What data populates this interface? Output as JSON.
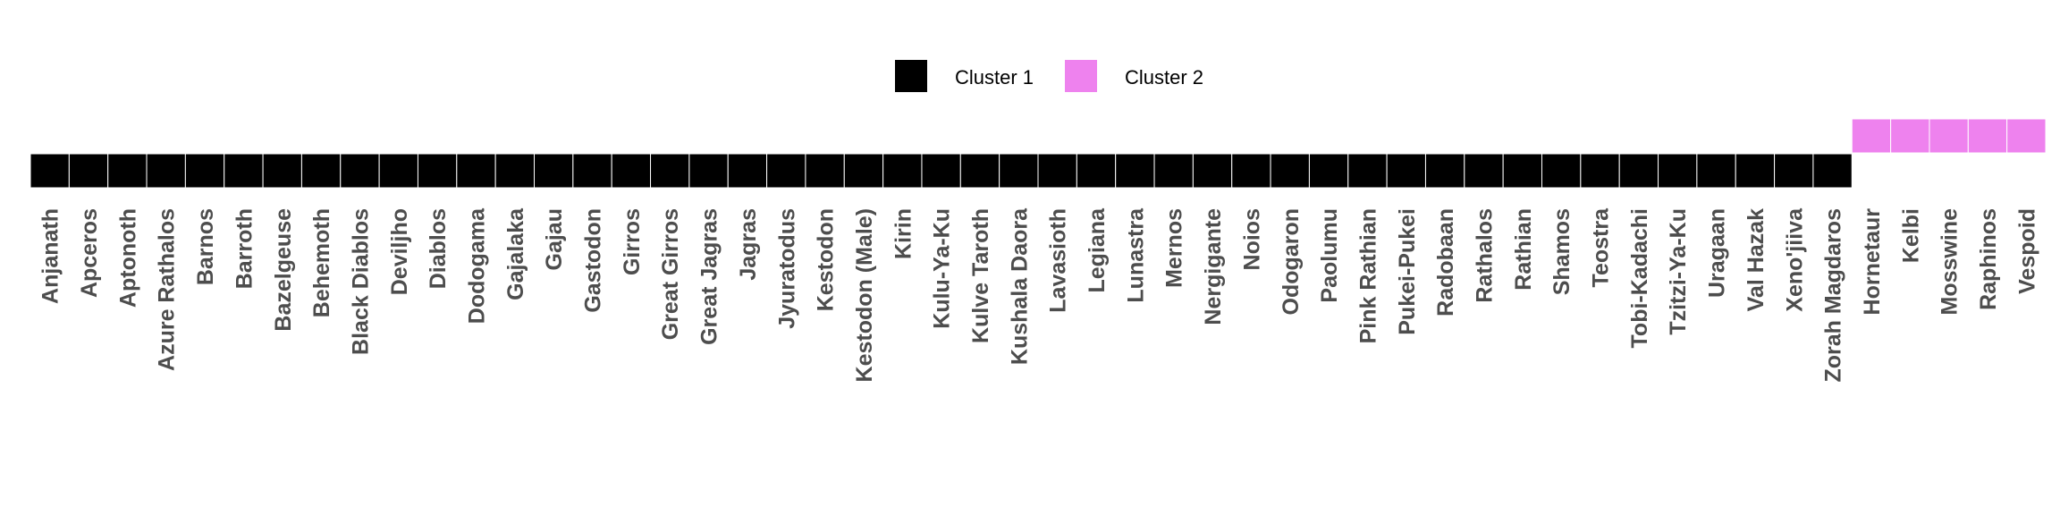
{
  "chart_data": {
    "type": "heatmap",
    "title": "",
    "xlabel": "",
    "ylabel": "",
    "legend": {
      "position": "top",
      "entries": [
        {
          "label": "Cluster 1",
          "color": "#000000"
        },
        {
          "label": "Cluster 2",
          "color": "#ee82ee"
        }
      ]
    },
    "categories": [
      "Anjanath",
      "Apceros",
      "Aptonoth",
      "Azure Rathalos",
      "Barnos",
      "Barroth",
      "Bazelgeuse",
      "Behemoth",
      "Black Diablos",
      "Deviljho",
      "Diablos",
      "Dodogama",
      "Gajalaka",
      "Gajau",
      "Gastodon",
      "Girros",
      "Great Girros",
      "Great Jagras",
      "Jagras",
      "Jyuratodus",
      "Kestodon",
      "Kestodon (Male)",
      "Kirin",
      "Kulu-Ya-Ku",
      "Kulve Taroth",
      "Kushala Daora",
      "Lavasioth",
      "Legiana",
      "Lunastra",
      "Mernos",
      "Nergigante",
      "Noios",
      "Odogaron",
      "Paolumu",
      "Pink Rathian",
      "Pukei-Pukei",
      "Radobaan",
      "Rathalos",
      "Rathian",
      "Shamos",
      "Teostra",
      "Tobi-Kadachi",
      "Tzitzi-Ya-Ku",
      "Uragaan",
      "Val Hazak",
      "Xeno'jiiva",
      "Zorah Magdaros",
      "Hornetaur",
      "Kelbi",
      "Mosswine",
      "Raphinos",
      "Vespoid"
    ],
    "values": [
      1,
      1,
      1,
      1,
      1,
      1,
      1,
      1,
      1,
      1,
      1,
      1,
      1,
      1,
      1,
      1,
      1,
      1,
      1,
      1,
      1,
      1,
      1,
      1,
      1,
      1,
      1,
      1,
      1,
      1,
      1,
      1,
      1,
      1,
      1,
      1,
      1,
      1,
      1,
      1,
      1,
      1,
      1,
      1,
      1,
      1,
      1,
      2,
      2,
      2,
      2,
      2
    ],
    "grid": false
  }
}
